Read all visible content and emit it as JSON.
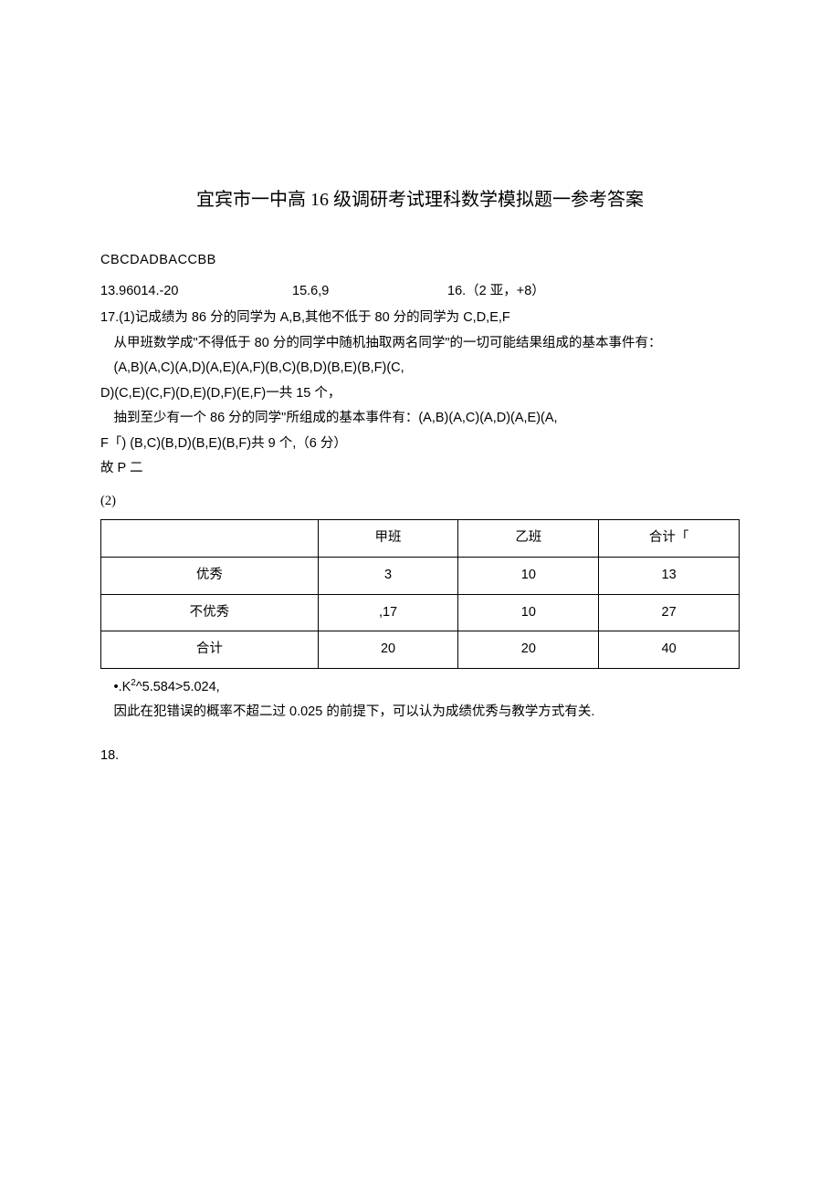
{
  "title": "宜宾市一中高 16 级调研考试理科数学模拟题一参考答案",
  "mc_answers": "CBCDADBACCBB",
  "fill_answers": {
    "a13_14": "13.96014.-20",
    "a15": "15.6,9",
    "a16": "16.（2 亚，+8）"
  },
  "q17": {
    "line1": "17.(1)记成绩为 86 分的同学为 A,B,其他不低于 80 分的同学为 C,D,E,F",
    "line2": "从甲班数学成\"不得低于 80 分的同学中随机抽取两名同学\"的一切可能结果组成的基本事件有：",
    "line3": "(A,B)(A,C)(A,D)(A,E)(A,F)(B,C)(B,D)(B,E)(B,F)(C,",
    "line4": "D)(C,E)(C,F)(D,E)(D,F)(E,F)一共 15 个，",
    "line5": "抽到至少有一个 86 分的同学\"所组成的基本事件有：(A,B)(A,C)(A,D)(A,E)(A,",
    "line6": "F「) (B,C)(B,D)(B,E)(B,F)共 9 个,（6 分）",
    "line7": "故 P 二"
  },
  "q2_label": "(2)",
  "table": {
    "headers": [
      "",
      "甲班",
      "乙班",
      "合计「"
    ],
    "rows": [
      [
        "优秀",
        "3",
        "10",
        "13"
      ],
      [
        "不优秀",
        ",17",
        "10",
        "27"
      ],
      [
        "合计",
        "20",
        "20",
        "40"
      ]
    ]
  },
  "after_table": {
    "line1_prefix": "•.K",
    "line1_sup": "2",
    "line1_rest": "^5.584>5.024,",
    "line2": "因此在犯错误的概率不超二过 0.025 的前提下，可以认为成绩优秀与教学方式有关."
  },
  "q18_label": "18."
}
